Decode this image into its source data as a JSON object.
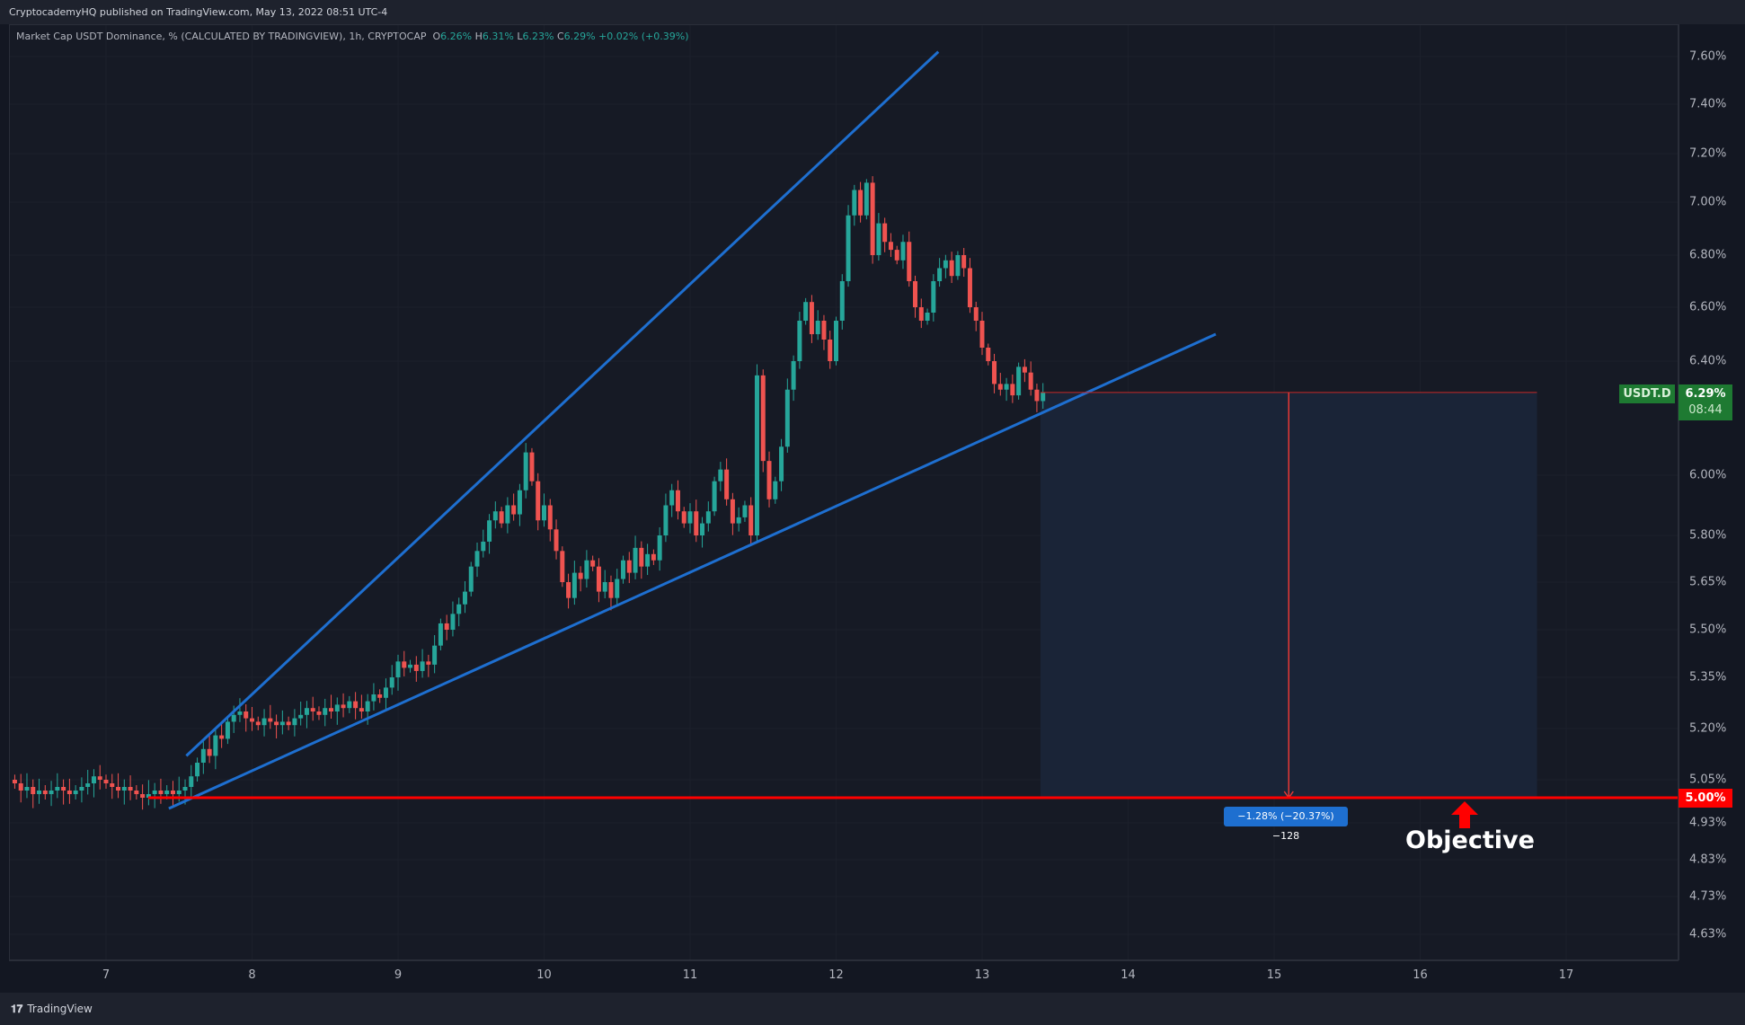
{
  "header": {
    "published": "CryptocademyHQ published on TradingView.com, May 13, 2022 08:51 UTC-4"
  },
  "legend": {
    "title": "Market Cap USDT Dominance, % (CALCULATED BY TRADINGVIEW), 1h, CRYPTOCAP",
    "o_label": "O",
    "o": "6.26%",
    "h_label": "H",
    "h": "6.31%",
    "l_label": "L",
    "l": "6.23%",
    "c_label": "C",
    "c": "6.29%",
    "change": "+0.02% (+0.39%)"
  },
  "symbol_badge": "USDT.D",
  "price_badge": "6.29%",
  "countdown": "08:44",
  "target_badge": "5.00%",
  "measure_label": "−1.28% (−20.37%) −128",
  "annotation": "Objective",
  "footer": {
    "brand": "TradingView"
  },
  "colors": {
    "up": "#26a69a",
    "down": "#ef5350",
    "trend": "#1e6fd0",
    "target": "#ff0000",
    "badge": "#1e7a32",
    "measure": "#1e6fd0"
  },
  "chart_data": {
    "type": "candlestick",
    "symbol": "USDT.D",
    "interval": "1h",
    "x_ticks": [
      "7",
      "8",
      "9",
      "10",
      "11",
      "12",
      "13",
      "14",
      "15",
      "16",
      "17"
    ],
    "y_ticks": [
      "7.60%",
      "7.40%",
      "7.20%",
      "7.00%",
      "6.80%",
      "6.60%",
      "6.40%",
      "6.00%",
      "5.80%",
      "5.65%",
      "5.50%",
      "5.35%",
      "5.20%",
      "5.05%",
      "4.93%",
      "4.83%",
      "4.73%",
      "4.63%"
    ],
    "start_day": 6.375,
    "closes": [
      5.04,
      5.02,
      5.03,
      5.01,
      5.02,
      5.01,
      5.02,
      5.03,
      5.02,
      5.01,
      5.02,
      5.03,
      5.04,
      5.06,
      5.05,
      5.04,
      5.03,
      5.02,
      5.03,
      5.02,
      5.01,
      5.0,
      5.01,
      5.02,
      5.01,
      5.02,
      5.01,
      5.02,
      5.03,
      5.06,
      5.1,
      5.14,
      5.12,
      5.18,
      5.17,
      5.22,
      5.24,
      5.25,
      5.23,
      5.22,
      5.21,
      5.23,
      5.22,
      5.21,
      5.22,
      5.21,
      5.23,
      5.24,
      5.26,
      5.25,
      5.24,
      5.26,
      5.25,
      5.27,
      5.26,
      5.28,
      5.26,
      5.25,
      5.28,
      5.3,
      5.29,
      5.32,
      5.35,
      5.4,
      5.38,
      5.39,
      5.37,
      5.4,
      5.39,
      5.45,
      5.52,
      5.5,
      5.55,
      5.58,
      5.62,
      5.7,
      5.75,
      5.78,
      5.85,
      5.88,
      5.84,
      5.9,
      5.87,
      5.95,
      6.08,
      5.98,
      5.85,
      5.9,
      5.82,
      5.75,
      5.65,
      5.6,
      5.68,
      5.66,
      5.72,
      5.7,
      5.62,
      5.65,
      5.6,
      5.66,
      5.72,
      5.68,
      5.76,
      5.7,
      5.74,
      5.72,
      5.8,
      5.9,
      5.95,
      5.88,
      5.84,
      5.88,
      5.8,
      5.84,
      5.88,
      5.98,
      6.02,
      5.92,
      5.84,
      5.86,
      5.9,
      5.8,
      6.35,
      6.05,
      5.92,
      5.98,
      6.1,
      6.3,
      6.4,
      6.55,
      6.62,
      6.5,
      6.55,
      6.48,
      6.4,
      6.55,
      6.7,
      6.95,
      7.05,
      6.95,
      7.08,
      6.8,
      6.92,
      6.85,
      6.82,
      6.78,
      6.85,
      6.7,
      6.6,
      6.55,
      6.58,
      6.7,
      6.75,
      6.78,
      6.72,
      6.8,
      6.75,
      6.6,
      6.55,
      6.45,
      6.4,
      6.32,
      6.3,
      6.32,
      6.28,
      6.38,
      6.36,
      6.3,
      6.26,
      6.29
    ],
    "trendlines": [
      {
        "name": "upper",
        "from": [
          7.55,
          5.12
        ],
        "to": [
          12.7,
          7.62
        ]
      },
      {
        "name": "lower",
        "from": [
          7.43,
          4.97
        ],
        "to": [
          14.6,
          6.5
        ]
      }
    ],
    "target_level": 5.0,
    "current_level": 6.29,
    "measure": {
      "from_day": 13.4,
      "to_day": 16.8,
      "from": 6.29,
      "to": 5.0
    }
  }
}
